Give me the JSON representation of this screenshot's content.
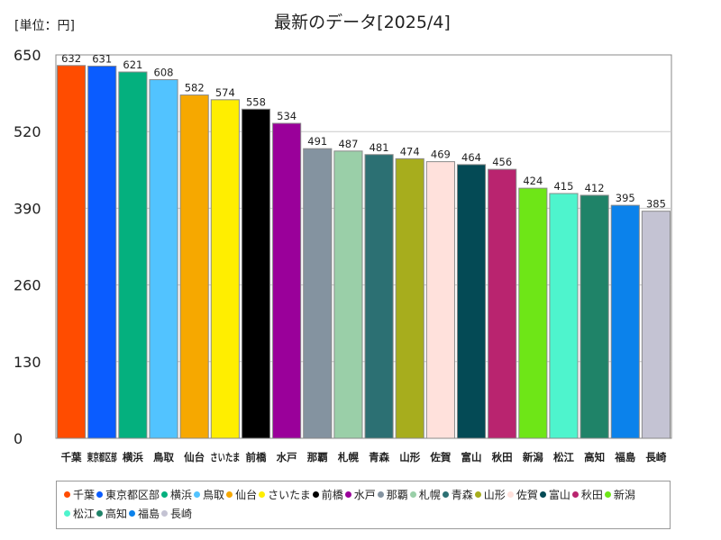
{
  "chart_data": {
    "type": "bar",
    "title": "最新のデータ[2025/4]",
    "unit_label": "[単位：円]",
    "ylim": [
      0,
      650
    ],
    "yticks": [
      0,
      130,
      260,
      390,
      520,
      650
    ],
    "grid": true,
    "legend_position": "bottom",
    "categories": [
      "千葉",
      "東京都区部",
      "横浜",
      "鳥取",
      "仙台",
      "さいたま",
      "前橋",
      "水戸",
      "那覇",
      "札幌",
      "青森",
      "山形",
      "佐賀",
      "富山",
      "秋田",
      "新潟",
      "松江",
      "高知",
      "福島",
      "長崎"
    ],
    "values": [
      632,
      631,
      621,
      608,
      582,
      574,
      558,
      534,
      491,
      487,
      481,
      474,
      469,
      464,
      456,
      424,
      415,
      412,
      395,
      385
    ],
    "colors": [
      "#ff4c00",
      "#0a5cff",
      "#04b07e",
      "#52c3ff",
      "#f6a800",
      "#ffee00",
      "#000000",
      "#9a009a",
      "#8493a0",
      "#9acfa8",
      "#2c7073",
      "#a7ad1d",
      "#ffe1dc",
      "#044a55",
      "#b9246f",
      "#6ee617",
      "#4ef4cd",
      "#1f8368",
      "#0b82eb",
      "#c4c3d3"
    ]
  }
}
